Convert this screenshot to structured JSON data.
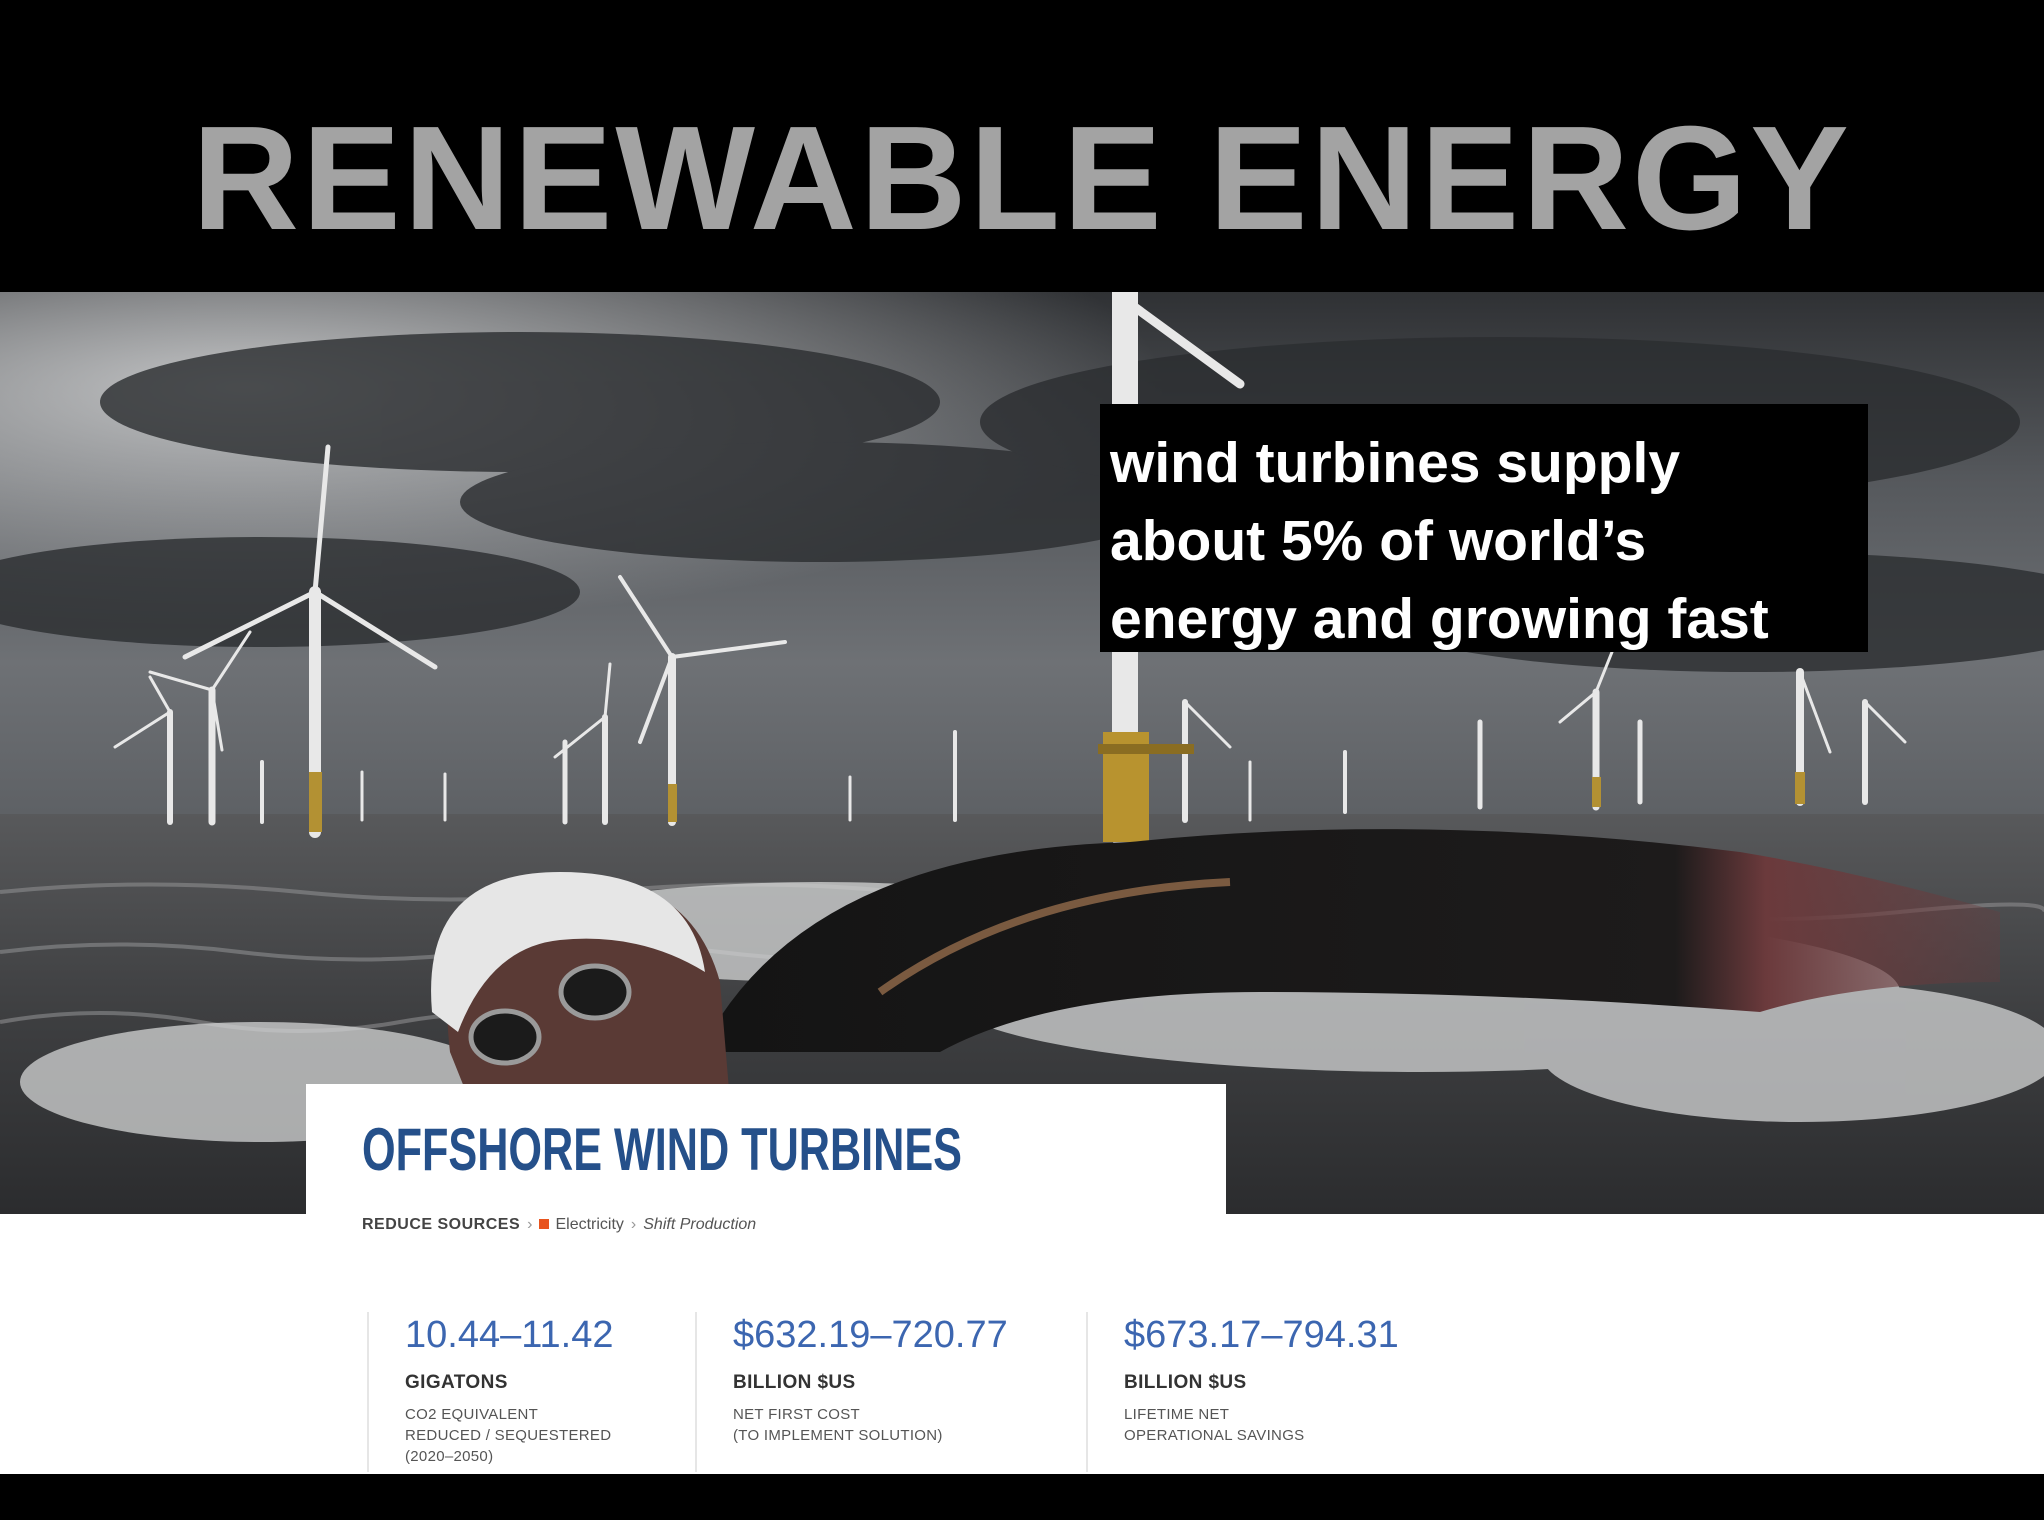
{
  "slide_title": "RENEWABLE ENERGY",
  "caption_lines": [
    "wind turbines supply",
    "about 5% of world’s",
    "energy and growing fast"
  ],
  "card": {
    "title": "OFFSHORE WIND TURBINES",
    "breadcrumb": {
      "root": "REDUCE SOURCES",
      "sector": "Electricity",
      "subsector": "Shift Production"
    }
  },
  "stats": [
    {
      "value": "10.44–11.42",
      "unit": "GIGATONS",
      "desc": [
        "CO2 EQUIVALENT",
        "REDUCED / SEQUESTERED",
        "(2020–2050)"
      ]
    },
    {
      "value": "$632.19–720.77",
      "unit": "BILLION $US",
      "desc": [
        "NET FIRST COST",
        "(TO IMPLEMENT SOLUTION)"
      ]
    },
    {
      "value": "$673.17–794.31",
      "unit": "BILLION $US",
      "desc": [
        "LIFETIME NET",
        "OPERATIONAL SAVINGS"
      ]
    }
  ],
  "colors": {
    "title": "#a3a3a3",
    "caption_text": "#ffffff",
    "card_title": "#25508a",
    "stat_value": "#3c66b0",
    "breadcrumb_dot": "#e8541e"
  },
  "image": {
    "subject": "swimmer-in-sea",
    "background": "offshore-wind-farm"
  }
}
